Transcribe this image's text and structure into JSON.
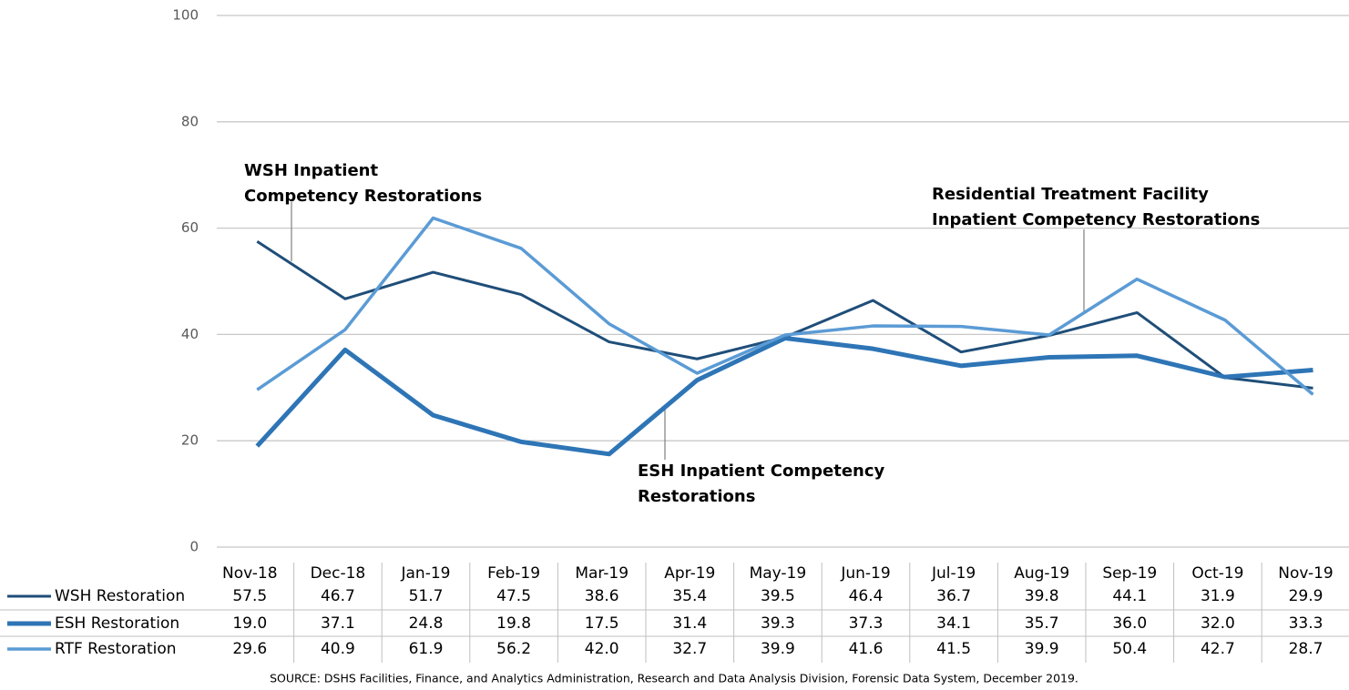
{
  "chart_data": {
    "type": "line",
    "categories": [
      "Nov-18",
      "Dec-18",
      "Jan-19",
      "Feb-19",
      "Mar-19",
      "Apr-19",
      "May-19",
      "Jun-19",
      "Jul-19",
      "Aug-19",
      "Sep-19",
      "Oct-19",
      "Nov-19"
    ],
    "series": [
      {
        "name": "WSH Restoration",
        "color": "#1f4e79",
        "width": 3,
        "values": [
          57.5,
          46.7,
          51.7,
          47.5,
          38.6,
          35.4,
          39.5,
          46.4,
          36.7,
          39.8,
          44.1,
          31.9,
          29.9
        ],
        "value_labels": [
          "57.5",
          "46.7",
          "51.7",
          "47.5",
          "38.6",
          "35.4",
          "39.5",
          "46.4",
          "36.7",
          "39.8",
          "44.1",
          "31.9",
          "29.9"
        ]
      },
      {
        "name": "ESH Restoration",
        "color": "#2e75b6",
        "width": 5,
        "values": [
          19.0,
          37.1,
          24.8,
          19.8,
          17.5,
          31.4,
          39.3,
          37.3,
          34.1,
          35.7,
          36.0,
          32.0,
          33.3
        ],
        "value_labels": [
          "19.0",
          "37.1",
          "24.8",
          "19.8",
          "17.5",
          "31.4",
          "39.3",
          "37.3",
          "34.1",
          "35.7",
          "36.0",
          "32.0",
          "33.3"
        ]
      },
      {
        "name": "RTF Restoration",
        "color": "#5b9bd5",
        "width": 3.5,
        "values": [
          29.6,
          40.9,
          61.9,
          56.2,
          42.0,
          32.7,
          39.9,
          41.6,
          41.5,
          39.9,
          50.4,
          42.7,
          28.7
        ],
        "value_labels": [
          "29.6",
          "40.9",
          "61.9",
          "56.2",
          "42.0",
          "32.7",
          "39.9",
          "41.6",
          "41.5",
          "39.9",
          "50.4",
          "42.7",
          "28.7"
        ]
      }
    ],
    "ylim": [
      0,
      100
    ],
    "yticks": [
      0,
      20,
      40,
      60,
      80,
      100
    ],
    "grid": true,
    "annotations": [
      {
        "lines": [
          "WSH Inpatient",
          "Competency Restorations"
        ],
        "color": "#1f4e79"
      },
      {
        "lines": [
          "ESH Inpatient Competency",
          "Restorations"
        ],
        "color": "#2e75b6"
      },
      {
        "lines": [
          "Residential Treatment Facility",
          "Inpatient Competency Restorations"
        ],
        "color": "#5b9bd5"
      }
    ],
    "source": "SOURCE: DSHS Facilities, Finance, and Analytics Administration, Research and Data Analysis Division, Forensic Data System, December 2019."
  }
}
